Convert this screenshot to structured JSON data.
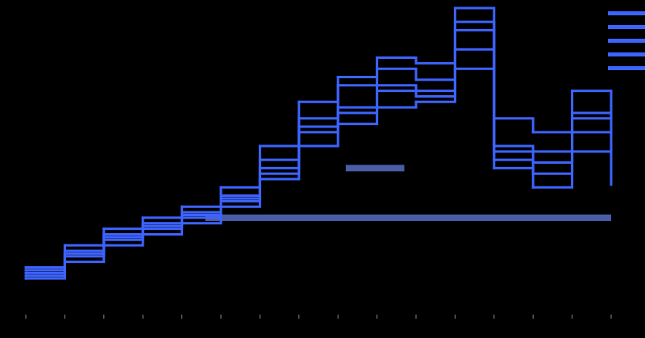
{
  "chart_data": {
    "type": "step",
    "title": "",
    "xlabel": "",
    "ylabel": "",
    "grid": false,
    "legend": {
      "position": "top-right",
      "entry_count": 5
    },
    "colors": {
      "background": "#000000",
      "line": "#3d63ff",
      "band": "#4a5ea8",
      "tick": "#8a8a8a"
    },
    "x_ticks": [
      "",
      "",
      "",
      "",
      "",
      "",
      "",
      "",
      "",
      "",
      "",
      "",
      "",
      "",
      "",
      ""
    ],
    "ylim": [
      0,
      100
    ],
    "series": [
      {
        "x": [
          0,
          1,
          2,
          3,
          4,
          5,
          6,
          7,
          8,
          9,
          10,
          11,
          12,
          13,
          14,
          15
        ],
        "values": [
          2,
          12,
          18,
          22,
          25,
          30,
          40,
          55,
          62,
          70,
          68,
          100,
          45,
          40,
          55,
          38
        ]
      },
      {
        "x": [
          0,
          1,
          2,
          3,
          4,
          5,
          6,
          7,
          8,
          9,
          10,
          11,
          12,
          13,
          14,
          15
        ],
        "values": [
          4,
          10,
          16,
          20,
          24,
          32,
          45,
          60,
          72,
          78,
          74,
          92,
          50,
          48,
          60,
          40
        ]
      },
      {
        "x": [
          0,
          1,
          2,
          3,
          4,
          5,
          6,
          7,
          8,
          9,
          10,
          11,
          12,
          13,
          14,
          15
        ],
        "values": [
          6,
          14,
          20,
          24,
          28,
          35,
          50,
          66,
          75,
          82,
          80,
          85,
          60,
          55,
          70,
          45
        ]
      },
      {
        "x": [
          0,
          1,
          2,
          3,
          4,
          5,
          6,
          7,
          8,
          9,
          10,
          11,
          12,
          13,
          14,
          15
        ],
        "values": [
          3,
          8,
          14,
          18,
          22,
          28,
          38,
          50,
          58,
          64,
          66,
          78,
          42,
          35,
          48,
          36
        ]
      },
      {
        "x": [
          0,
          1,
          2,
          3,
          4,
          5,
          6,
          7,
          8,
          9,
          10,
          11,
          12,
          13,
          14,
          15
        ],
        "values": [
          5,
          11,
          17,
          21,
          26,
          31,
          42,
          57,
          64,
          72,
          70,
          95,
          48,
          44,
          62,
          42
        ]
      }
    ],
    "bands": [
      {
        "from_x": 8.2,
        "to_x": 9.7,
        "y": 42
      },
      {
        "from_x": 4.6,
        "to_x": 15,
        "y": 24
      }
    ]
  }
}
